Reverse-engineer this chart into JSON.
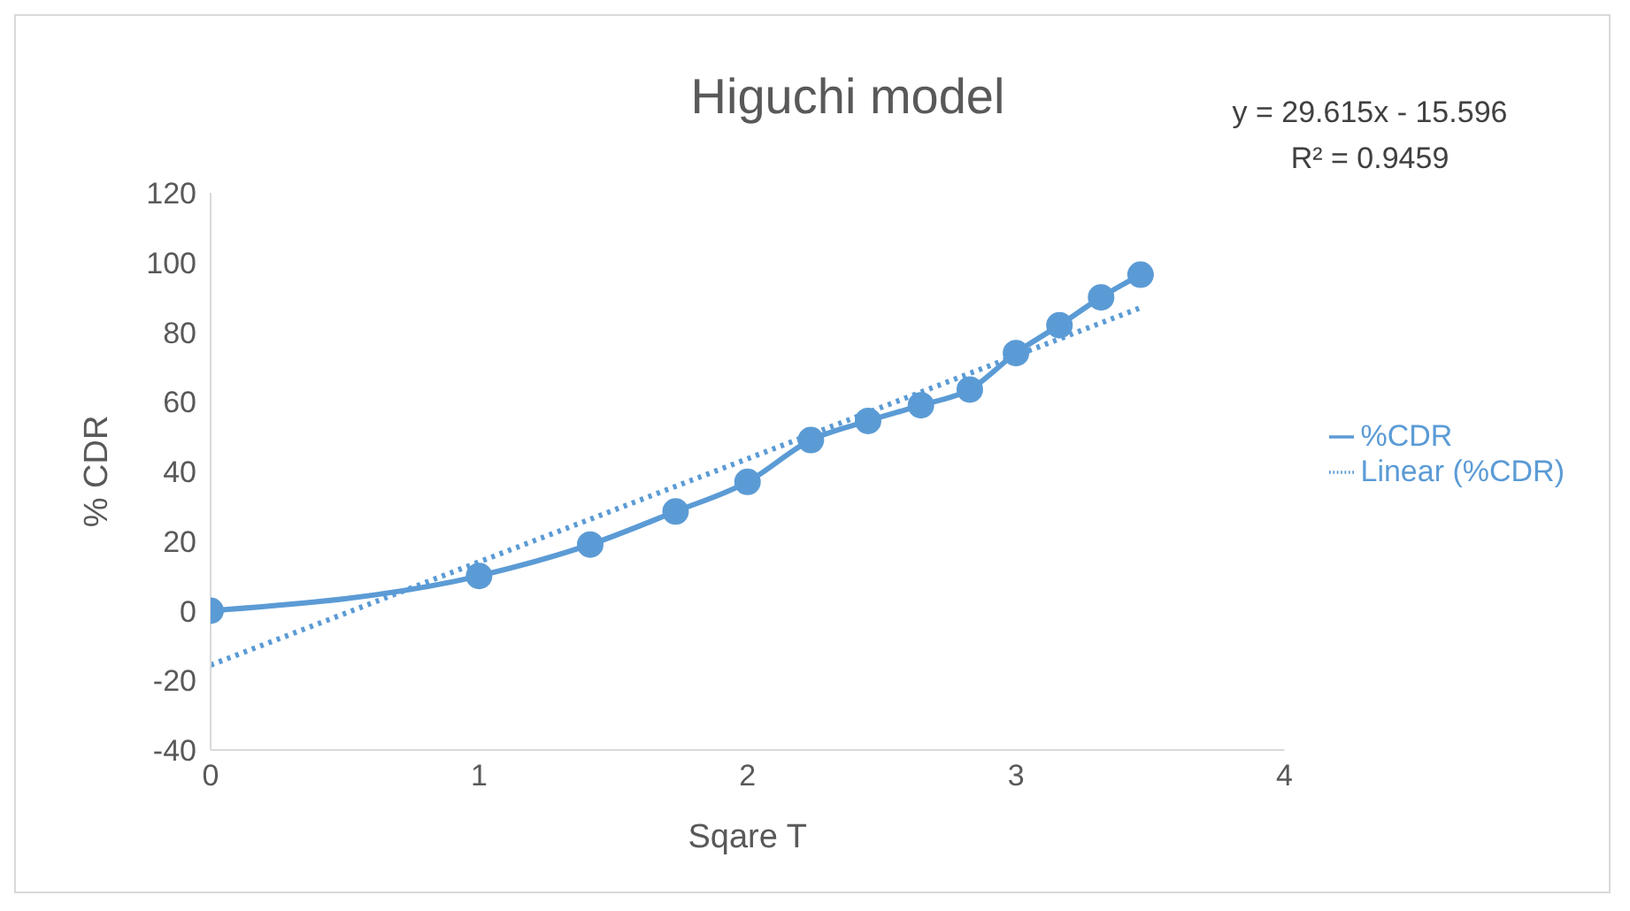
{
  "chart_data": {
    "type": "line",
    "title": "Higuchi model",
    "xlabel": "Sqare T",
    "ylabel": "% CDR",
    "annotations": [
      "y = 29.615x - 15.596",
      "R² = 0.9459"
    ],
    "series": [
      {
        "name": "%CDR",
        "color": "#5b9bd5",
        "marker": "circle",
        "line_style": "solid",
        "x": [
          0,
          1,
          1.414,
          1.732,
          2,
          2.236,
          2.449,
          2.646,
          2.828,
          3,
          3.162,
          3.317,
          3.464
        ],
        "values": [
          0,
          10,
          19,
          28.5,
          37,
          49,
          54.5,
          59,
          63.5,
          74,
          82,
          90,
          96.5
        ]
      },
      {
        "name": "Linear (%CDR)",
        "color": "#5b9bd5",
        "marker": "none",
        "line_style": "dotted",
        "x": [
          0,
          3.464
        ],
        "values": [
          -15.6,
          87
        ]
      }
    ],
    "xlim": [
      0,
      4
    ],
    "xticks": [
      0,
      1,
      2,
      3,
      4
    ],
    "ylim": [
      -40,
      120
    ],
    "yticks": [
      -40,
      -20,
      0,
      20,
      40,
      60,
      80,
      100,
      120
    ],
    "legend": "right"
  }
}
